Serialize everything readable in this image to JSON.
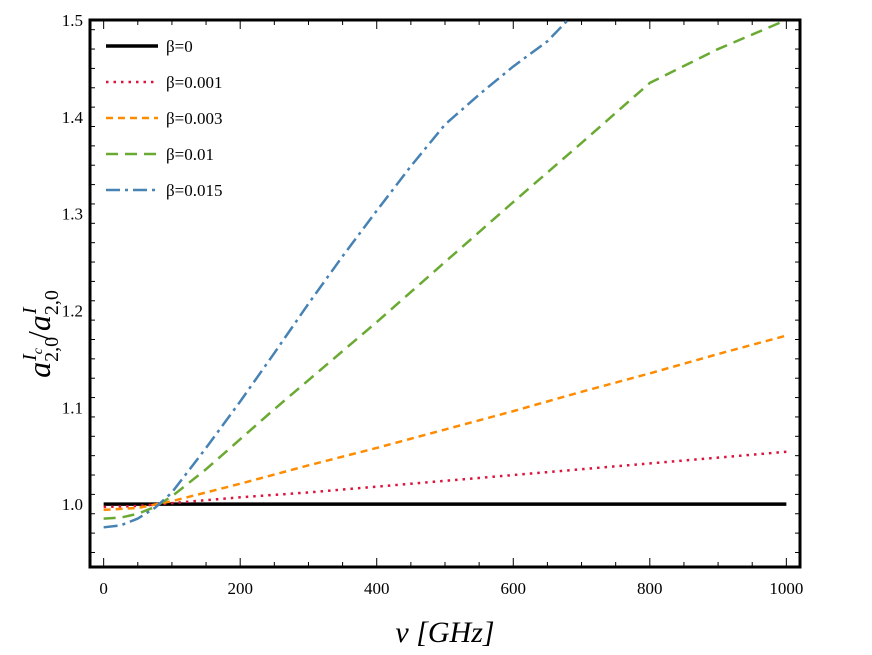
{
  "chart_data": {
    "type": "line",
    "xlabel": "ν [GHz]",
    "ylabel": "a^{I_c}_{2,0} / a^{I}_{2,0}",
    "xlim": [
      -20,
      1020
    ],
    "ylim": [
      0.935,
      1.5
    ],
    "xticks": [
      0,
      200,
      400,
      600,
      800,
      1000
    ],
    "yticks": [
      1.0,
      1.1,
      1.2,
      1.3,
      1.4,
      1.5
    ],
    "xtick_labels": [
      "0",
      "200",
      "400",
      "600",
      "800",
      "1000"
    ],
    "ytick_labels": [
      "1.0",
      "1.1",
      "1.2",
      "1.3",
      "1.4",
      "1.5"
    ],
    "grid": false,
    "legend_position": "top-left",
    "series": [
      {
        "name": "β=0",
        "color": "#000000",
        "dash": "solid",
        "x": [
          0,
          1000
        ],
        "y": [
          1.0,
          1.0
        ]
      },
      {
        "name": "β=0.001",
        "color": "#dc143c",
        "dash": "dotted",
        "x": [
          0,
          50,
          100,
          200,
          300,
          400,
          500,
          600,
          700,
          800,
          900,
          1000
        ],
        "y": [
          0.997,
          0.998,
          1.001,
          1.007,
          1.012,
          1.018,
          1.024,
          1.03,
          1.036,
          1.042,
          1.048,
          1.054
        ]
      },
      {
        "name": "β=0.003",
        "color": "#ff8c00",
        "dash": "short-dash",
        "x": [
          0,
          50,
          100,
          150,
          200,
          300,
          400,
          500,
          600,
          700,
          800,
          900,
          1000
        ],
        "y": [
          0.994,
          0.996,
          1.003,
          1.012,
          1.021,
          1.04,
          1.058,
          1.077,
          1.096,
          1.116,
          1.135,
          1.155,
          1.174
        ]
      },
      {
        "name": "β=0.01",
        "color": "#6aaa32",
        "dash": "dashed",
        "x": [
          0,
          25,
          50,
          75,
          100,
          150,
          200,
          250,
          300,
          400,
          500,
          600,
          700,
          800,
          900,
          1000
        ],
        "y": [
          0.985,
          0.986,
          0.99,
          0.997,
          1.008,
          1.036,
          1.067,
          1.098,
          1.128,
          1.188,
          1.25,
          1.312,
          1.373,
          1.435,
          1.47,
          1.5
        ]
      },
      {
        "name": "β=0.015",
        "color": "#4682b4",
        "dash": "dash-dot",
        "x": [
          0,
          25,
          50,
          75,
          100,
          150,
          200,
          250,
          300,
          350,
          400,
          450,
          500,
          550,
          600,
          650,
          680
        ],
        "y": [
          0.976,
          0.978,
          0.985,
          0.996,
          1.012,
          1.058,
          1.106,
          1.156,
          1.207,
          1.256,
          1.303,
          1.349,
          1.392,
          1.423,
          1.452,
          1.478,
          1.5
        ]
      }
    ]
  }
}
